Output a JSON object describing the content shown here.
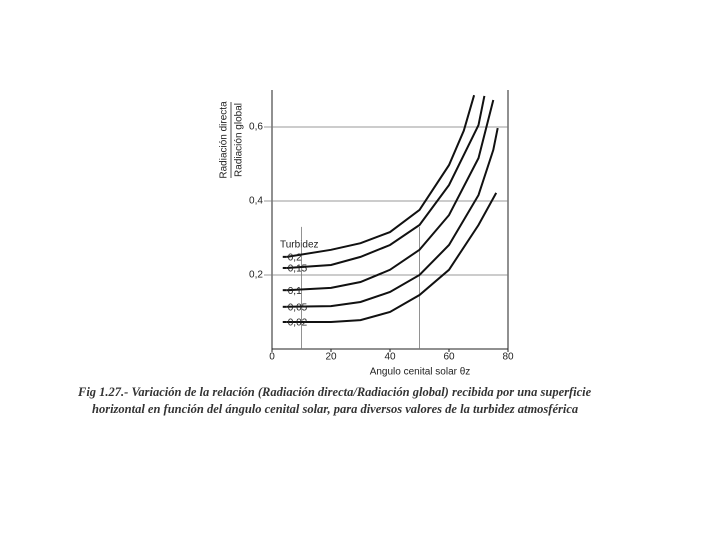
{
  "chart_data": {
    "type": "line",
    "y_label_top": "Radiación directa",
    "y_label_bottom": "Radiación global",
    "x_label": "Angulo cenital solar θz",
    "legend_title": "Turbidez",
    "caption": [
      "Fig 1.27.- Variación de la relación (Radiación directa/Radiación global) recibida  por una superficie",
      "horizontal en función del ángulo cenital solar, para diversos valores de la turbidez atmosférica"
    ],
    "xlim": [
      0,
      80
    ],
    "xticks": [
      0,
      20,
      40,
      60,
      80
    ],
    "ylim": [
      0,
      0.7
    ],
    "yticks": [
      {
        "value": 0.2,
        "label": "0,2"
      },
      {
        "value": 0.4,
        "label": "0,4"
      },
      {
        "value": 0.6,
        "label": "0,6"
      }
    ],
    "grid": true,
    "vlines": [
      10,
      50
    ],
    "series": [
      {
        "name": "0,2",
        "color": "#111",
        "x": [
          5,
          20,
          30,
          40,
          50,
          60,
          65,
          68.5
        ],
        "values": [
          0.249,
          0.268,
          0.286,
          0.316,
          0.376,
          0.497,
          0.59,
          0.686
        ]
      },
      {
        "name": "0,15",
        "color": "#111",
        "x": [
          5,
          20,
          30,
          40,
          50,
          60,
          70,
          72
        ],
        "values": [
          0.219,
          0.227,
          0.249,
          0.281,
          0.335,
          0.443,
          0.605,
          0.684
        ]
      },
      {
        "name": "0,1",
        "color": "#111",
        "x": [
          5,
          20,
          30,
          40,
          50,
          60,
          70,
          75
        ],
        "values": [
          0.159,
          0.165,
          0.181,
          0.214,
          0.268,
          0.362,
          0.516,
          0.673
        ]
      },
      {
        "name": "0,05",
        "color": "#111",
        "x": [
          5,
          20,
          30,
          40,
          50,
          60,
          70,
          75,
          76.5
        ],
        "values": [
          0.114,
          0.116,
          0.127,
          0.154,
          0.2,
          0.281,
          0.416,
          0.538,
          0.597
        ]
      },
      {
        "name": "0,02",
        "color": "#111",
        "x": [
          5,
          20,
          30,
          40,
          50,
          60,
          70,
          76
        ],
        "values": [
          0.073,
          0.073,
          0.078,
          0.1,
          0.146,
          0.214,
          0.335,
          0.422
        ]
      }
    ]
  }
}
